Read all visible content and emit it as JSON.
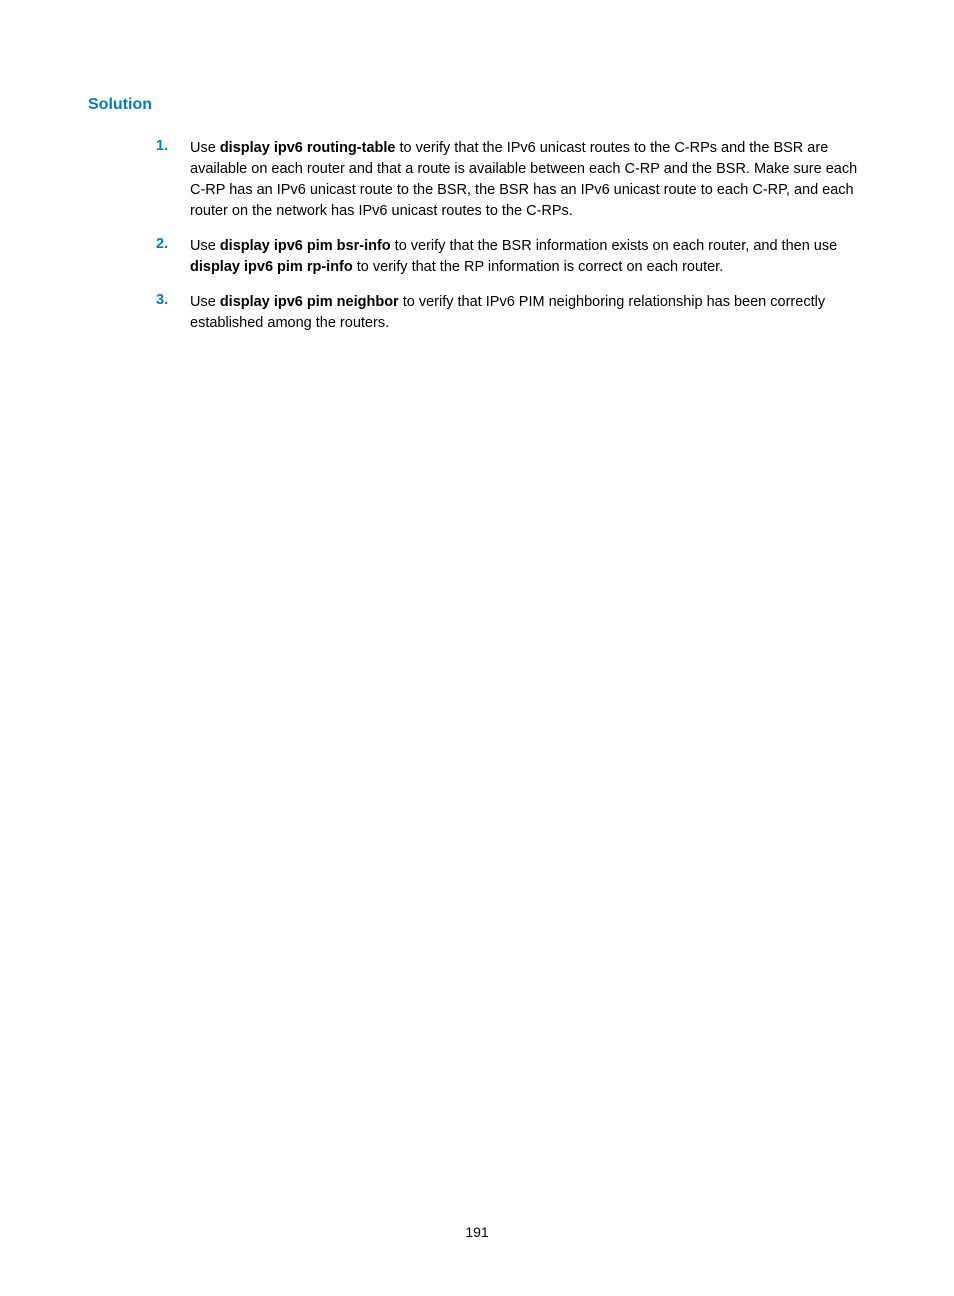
{
  "heading": "Solution",
  "items": [
    {
      "number": "1.",
      "parts": [
        {
          "text": "Use ",
          "bold": false
        },
        {
          "text": "display ipv6 routing-table",
          "bold": true
        },
        {
          "text": " to verify that the IPv6 unicast routes to the C-RPs and the BSR are available on each router and that a route is available between each C-RP and the BSR. Make sure each C-RP has an IPv6 unicast route to the BSR, the BSR has an IPv6 unicast route to each C-RP, and each router on the network has IPv6 unicast routes to the C-RPs.",
          "bold": false
        }
      ]
    },
    {
      "number": "2.",
      "parts": [
        {
          "text": "Use ",
          "bold": false
        },
        {
          "text": "display ipv6 pim bsr-info",
          "bold": true
        },
        {
          "text": " to verify that the BSR information exists on each router, and then use ",
          "bold": false
        },
        {
          "text": "display ipv6 pim rp-info",
          "bold": true
        },
        {
          "text": " to verify that the RP information is correct on each router.",
          "bold": false
        }
      ]
    },
    {
      "number": "3.",
      "parts": [
        {
          "text": "Use ",
          "bold": false
        },
        {
          "text": "display ipv6 pim neighbor",
          "bold": true
        },
        {
          "text": " to verify that IPv6 PIM neighboring relationship has been correctly established among the routers.",
          "bold": false
        }
      ]
    }
  ],
  "page_number": "191"
}
